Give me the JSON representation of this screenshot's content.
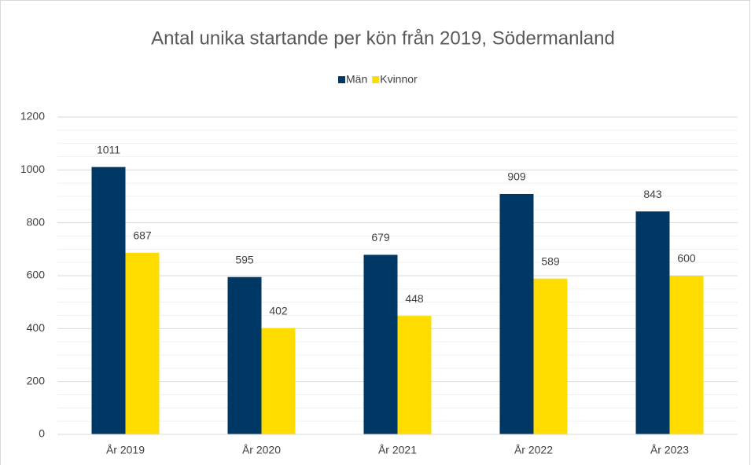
{
  "chart_data": {
    "type": "bar",
    "title": "Antal unika startande per kön från 2019, Södermanland",
    "categories": [
      "År 2019",
      "År 2020",
      "År 2021",
      "År 2022",
      "År 2023"
    ],
    "series": [
      {
        "name": "Män",
        "color": "#003865",
        "values": [
          1011,
          595,
          679,
          909,
          843
        ]
      },
      {
        "name": "Kvinnor",
        "color": "#ffdc00",
        "values": [
          687,
          402,
          448,
          589,
          600
        ]
      }
    ],
    "ylim": [
      0,
      1200
    ],
    "yticks": [
      0,
      200,
      400,
      600,
      800,
      1000,
      1200
    ],
    "yticks_minor": [
      50,
      100,
      150,
      250,
      300,
      350,
      450,
      500,
      550,
      650,
      700,
      750,
      850,
      900,
      950,
      1050,
      1100,
      1150
    ],
    "grid": true,
    "legend": "top"
  }
}
